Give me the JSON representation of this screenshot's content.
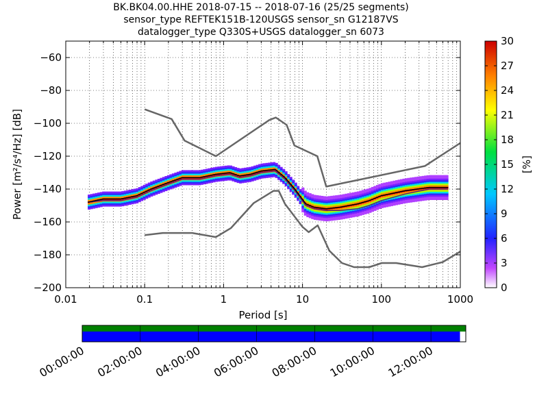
{
  "header": {
    "line1": "BK.BK04.00.HHE   2018-07-15 -- 2018-07-16  (25/25 segments)",
    "line2": "sensor_type REFTEK151B-120USGS sensor_sn G12187VS",
    "line3": "datalogger_type Q330S+USGS datalogger_sn 6073"
  },
  "chart_data": {
    "type": "heatmap",
    "xlabel": "Period [s]",
    "ylabel": "Power [m²/s⁴/Hz] [dB]",
    "xscale": "log",
    "xlim": [
      0.01,
      1000
    ],
    "ylim": [
      -200,
      -50
    ],
    "x_ticks": [
      0.01,
      0.1,
      1,
      10,
      100,
      1000
    ],
    "x_tick_labels": [
      "0.01",
      "0.1",
      "1",
      "10",
      "100",
      "1000"
    ],
    "y_ticks": [
      -60,
      -80,
      -100,
      -120,
      -140,
      -160,
      -180,
      -200
    ],
    "y_tick_labels": [
      "−60",
      "−80",
      "−100",
      "−120",
      "−140",
      "−160",
      "−180",
      "−200"
    ],
    "grid": true,
    "colorbar": {
      "label": "[%]",
      "range": [
        0,
        30
      ],
      "ticks": [
        0,
        3,
        6,
        9,
        12,
        15,
        18,
        21,
        24,
        27,
        30
      ]
    },
    "noise_models": [
      {
        "name": "high-noise-model",
        "color": "#666666",
        "points": [
          [
            0.1,
            -91.5
          ],
          [
            0.22,
            -97.4
          ],
          [
            0.32,
            -110.5
          ],
          [
            0.8,
            -120
          ],
          [
            3.8,
            -98
          ],
          [
            4.6,
            -96.5
          ],
          [
            6.3,
            -101
          ],
          [
            7.9,
            -113.5
          ],
          [
            15.4,
            -120
          ],
          [
            20,
            -138.5
          ],
          [
            354.8,
            -126
          ],
          [
            1000,
            -112
          ]
        ]
      },
      {
        "name": "low-noise-model",
        "color": "#666666",
        "points": [
          [
            0.1,
            -168
          ],
          [
            0.17,
            -166.7
          ],
          [
            0.4,
            -166.7
          ],
          [
            0.8,
            -169.2
          ],
          [
            1.24,
            -163.7
          ],
          [
            2.4,
            -148.6
          ],
          [
            4.3,
            -141.1
          ],
          [
            5,
            -141.1
          ],
          [
            6,
            -149
          ],
          [
            10,
            -163
          ],
          [
            12,
            -166.2
          ],
          [
            15.6,
            -162.1
          ],
          [
            21.9,
            -177.5
          ],
          [
            31.6,
            -185
          ],
          [
            45,
            -187.5
          ],
          [
            70,
            -187.5
          ],
          [
            101,
            -185
          ],
          [
            154,
            -185
          ],
          [
            328,
            -187.5
          ],
          [
            600,
            -184.4
          ],
          [
            1000,
            -178
          ]
        ]
      }
    ],
    "psd_series": [
      {
        "name": "mode",
        "color": "#000000",
        "points": [
          [
            0.019,
            -148
          ],
          [
            0.03,
            -146
          ],
          [
            0.05,
            -146
          ],
          [
            0.08,
            -144
          ],
          [
            0.12,
            -140
          ],
          [
            0.2,
            -136
          ],
          [
            0.3,
            -133
          ],
          [
            0.5,
            -133
          ],
          [
            0.8,
            -131
          ],
          [
            1.2,
            -130
          ],
          [
            1.6,
            -132
          ],
          [
            2.2,
            -131
          ],
          [
            3,
            -129
          ],
          [
            4.5,
            -128
          ],
          [
            6,
            -133
          ],
          [
            8,
            -140
          ],
          [
            11,
            -149
          ],
          [
            14,
            -151
          ],
          [
            20,
            -152
          ],
          [
            30,
            -151
          ],
          [
            50,
            -149
          ],
          [
            70,
            -147
          ],
          [
            100,
            -144
          ],
          [
            200,
            -141
          ],
          [
            400,
            -139
          ],
          [
            700,
            -139
          ]
        ]
      },
      {
        "name": "mean",
        "color": "#5a1a7a",
        "points": [
          [
            0.019,
            -148
          ],
          [
            0.03,
            -147
          ],
          [
            0.05,
            -147
          ],
          [
            0.08,
            -145
          ],
          [
            0.12,
            -141
          ],
          [
            0.2,
            -137
          ],
          [
            0.3,
            -134
          ],
          [
            0.5,
            -134
          ],
          [
            0.8,
            -132
          ],
          [
            1.2,
            -131
          ],
          [
            1.6,
            -133
          ],
          [
            2.2,
            -132
          ],
          [
            3,
            -130
          ],
          [
            4.5,
            -129
          ],
          [
            6,
            -134
          ],
          [
            8,
            -141
          ],
          [
            11,
            -150
          ],
          [
            14,
            -152
          ],
          [
            20,
            -153
          ],
          [
            30,
            -153
          ],
          [
            50,
            -152
          ],
          [
            70,
            -150
          ],
          [
            100,
            -147
          ],
          [
            200,
            -143
          ],
          [
            400,
            -140
          ],
          [
            700,
            -140
          ]
        ]
      }
    ],
    "time_axis": {
      "ticks": [
        "00:00:00",
        "02:00:00",
        "04:00:00",
        "06:00:00",
        "08:00:00",
        "10:00:00",
        "12:00:00"
      ],
      "tick_hours": [
        0,
        2,
        4,
        6,
        8,
        10,
        12
      ],
      "span_hours": 13.2,
      "data_coverage_end_hours": 13.0,
      "colors": {
        "processed": "#0000ff",
        "available": "#008000"
      }
    }
  }
}
